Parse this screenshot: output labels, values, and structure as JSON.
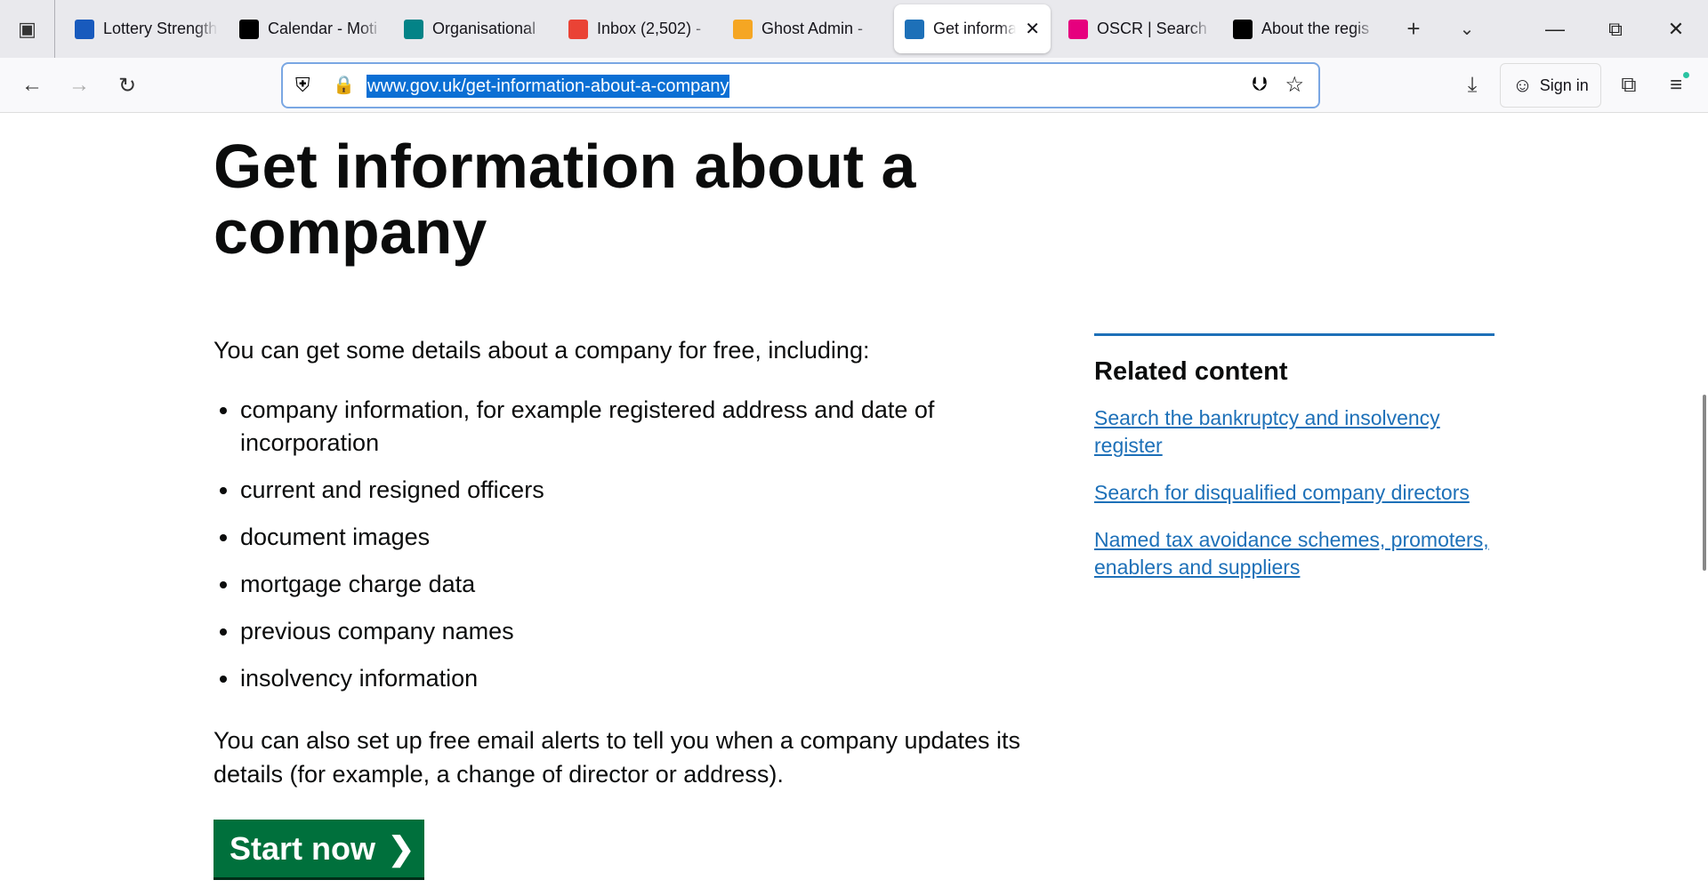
{
  "browser": {
    "tabs": [
      {
        "title": "Lottery Strength",
        "icon": "word-icon",
        "color": "#185abd"
      },
      {
        "title": "Calendar - Moti",
        "icon": "motion-icon",
        "color": "#000000"
      },
      {
        "title": "Organisational",
        "icon": "sharepoint-icon",
        "color": "#038387"
      },
      {
        "title": "Inbox (2,502) -",
        "icon": "gmail-icon",
        "color": "#ea4335"
      },
      {
        "title": "Ghost Admin -",
        "icon": "ghost-icon",
        "color": "#f5a623"
      },
      {
        "title": "Get information",
        "icon": "govuk-crown-icon",
        "color": "#1d70b8",
        "active": true
      },
      {
        "title": "OSCR | Search f",
        "icon": "oscr-icon",
        "color": "#e6007e"
      },
      {
        "title": "About the regis",
        "icon": "crown-icon",
        "color": "#000000"
      }
    ],
    "url": "www.gov.uk/get-information-about-a-company",
    "sign_in": "Sign in"
  },
  "page": {
    "title": "Get information about a company",
    "intro": "You can get some details about a company for free, including:",
    "items": [
      "company information, for example registered address and date of incorporation",
      "current and resigned officers",
      "document images",
      "mortgage charge data",
      "previous company names",
      "insolvency information"
    ],
    "alerts": "You can also set up free email alerts to tell you when a company updates its details (for example, a change of director or address).",
    "start_button": "Start now",
    "accent": "#00703c"
  },
  "related": {
    "heading": "Related content",
    "links": [
      "Search the bankruptcy and insolvency register",
      "Search for disqualified company directors",
      "Named tax avoidance schemes, promoters, enablers and suppliers"
    ]
  }
}
